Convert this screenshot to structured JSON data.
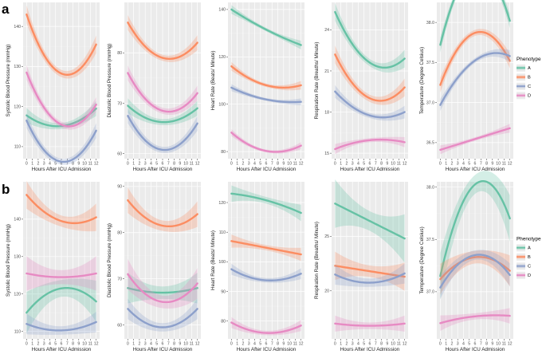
{
  "colors": {
    "A": "#66c2a5",
    "B": "#fc8d62",
    "C": "#8da0cb",
    "D": "#e78ac3"
  },
  "legend": {
    "title": "Phenotype",
    "labels": [
      "A",
      "B",
      "C",
      "D"
    ]
  },
  "chart_data": [
    {
      "label": "a",
      "type": "line",
      "x_ticks": [
        0,
        1,
        2,
        3,
        4,
        5,
        6,
        7,
        8,
        9,
        10,
        11,
        12
      ],
      "xlabel": "Hours After ICU Admission",
      "panels": [
        {
          "ylabel": "Systolic Blood Pressure (mmHg)",
          "ylim": [
            107,
            146
          ],
          "y_ticks": [
            110,
            120,
            130,
            140
          ],
          "series": [
            {
              "name": "A",
              "x": [
                0,
                12
              ],
              "y": [
                117.8,
                119.5
              ],
              "ci": 1.0,
              "curve": [
                0,
                -3.5
              ]
            },
            {
              "name": "B",
              "x": [
                0,
                12
              ],
              "y": [
                143,
                135.5
              ],
              "ci": 1.2,
              "curve": [
                0,
                -11
              ]
            },
            {
              "name": "C",
              "x": [
                0,
                12
              ],
              "y": [
                116.5,
                114
              ],
              "ci": 1.0,
              "curve": [
                0,
                -9
              ]
            },
            {
              "name": "D",
              "x": [
                0,
                12
              ],
              "y": [
                128.5,
                120.5
              ],
              "ci": 1.0,
              "curve": [
                0,
                -9
              ]
            }
          ]
        },
        {
          "ylabel": "Diastolic Blood Pressure (mmHg)",
          "ylim": [
            59,
            90
          ],
          "y_ticks": [
            60,
            70,
            80
          ],
          "series": [
            {
              "name": "A",
              "x": [
                0,
                12
              ],
              "y": [
                69.5,
                69
              ],
              "ci": 0.8,
              "curve": [
                0,
                -3
              ]
            },
            {
              "name": "B",
              "x": [
                0,
                12
              ],
              "y": [
                86,
                82
              ],
              "ci": 0.8,
              "curve": [
                0,
                -5
              ]
            },
            {
              "name": "C",
              "x": [
                0,
                12
              ],
              "y": [
                67.5,
                66
              ],
              "ci": 0.8,
              "curve": [
                0,
                -6
              ]
            },
            {
              "name": "D",
              "x": [
                0,
                12
              ],
              "y": [
                76,
                72
              ],
              "ci": 0.8,
              "curve": [
                0,
                -5.5
              ]
            }
          ]
        },
        {
          "ylabel": "Heart Rate (Beats/ Minute)",
          "ylim": [
            77,
            143
          ],
          "y_ticks": [
            80,
            100,
            120,
            140
          ],
          "series": [
            {
              "name": "A",
              "x": [
                0,
                12
              ],
              "y": [
                140,
                125
              ],
              "ci": 1.0,
              "curve": [
                0,
                -1
              ]
            },
            {
              "name": "B",
              "x": [
                0,
                12
              ],
              "y": [
                116,
                108
              ],
              "ci": 1.0,
              "curve": [
                0,
                -4
              ]
            },
            {
              "name": "C",
              "x": [
                0,
                12
              ],
              "y": [
                107,
                101
              ],
              "ci": 0.8,
              "curve": [
                0,
                -2
              ]
            },
            {
              "name": "D",
              "x": [
                0,
                12
              ],
              "y": [
                88,
                82.5
              ],
              "ci": 0.8,
              "curve": [
                0,
                -5
              ]
            }
          ]
        },
        {
          "ylabel": "Respiration Rate (Breaths/ Minute)",
          "ylim": [
            14.6,
            26
          ],
          "y_ticks": [
            15,
            18,
            21,
            24
          ],
          "series": [
            {
              "name": "A",
              "x": [
                0,
                12
              ],
              "y": [
                25.3,
                21.9
              ],
              "ci": 0.35,
              "curve": [
                0,
                -2
              ]
            },
            {
              "name": "B",
              "x": [
                0,
                12
              ],
              "y": [
                22.2,
                19.8
              ],
              "ci": 0.35,
              "curve": [
                0,
                -2
              ]
            },
            {
              "name": "C",
              "x": [
                0,
                12
              ],
              "y": [
                19.5,
                18
              ],
              "ci": 0.25,
              "curve": [
                0,
                -1
              ]
            },
            {
              "name": "D",
              "x": [
                0,
                12
              ],
              "y": [
                15.3,
                15.8
              ],
              "ci": 0.2,
              "curve": [
                0,
                0.4
              ]
            }
          ]
        },
        {
          "ylabel": "Temperature (Degree Celsius)",
          "ylim": [
            36.3,
            38.25
          ],
          "y_ticks": [
            36.5,
            37.0,
            37.5,
            38.0
          ],
          "series": [
            {
              "name": "A",
              "x": [
                0,
                12
              ],
              "y": [
                37.72,
                38.02
              ],
              "ci": 0.05,
              "curve": [
                0,
                0.8
              ]
            },
            {
              "name": "B",
              "x": [
                0,
                12
              ],
              "y": [
                37.22,
                37.52
              ],
              "ci": 0.05,
              "curve": [
                0,
                0.5
              ]
            },
            {
              "name": "C",
              "x": [
                0,
                12
              ],
              "y": [
                36.97,
                37.58
              ],
              "ci": 0.04,
              "curve": [
                0,
                0.25
              ]
            },
            {
              "name": "D",
              "x": [
                0,
                12
              ],
              "y": [
                36.41,
                36.68
              ],
              "ci": 0.03,
              "curve": [
                0,
                0
              ]
            }
          ]
        }
      ]
    },
    {
      "label": "b",
      "type": "line",
      "x_ticks": [
        0,
        1,
        2,
        3,
        4,
        5,
        6,
        7,
        8,
        9,
        10,
        11,
        12
      ],
      "xlabel": "Hours After ICU Admission",
      "panels": [
        {
          "ylabel": "Systolic Blood Pressure (mmHg)",
          "ylim": [
            108,
            150
          ],
          "y_ticks": [
            110,
            120,
            130,
            140
          ],
          "series": [
            {
              "name": "A",
              "x": [
                0,
                12
              ],
              "y": [
                115,
                118
              ],
              "ci": 3.0,
              "curve": [
                0,
                5
              ]
            },
            {
              "name": "B",
              "x": [
                0,
                12
              ],
              "y": [
                146.5,
                140.5
              ],
              "ci": 2.0,
              "curve": [
                0,
                -4
              ]
            },
            {
              "name": "C",
              "x": [
                0,
                12
              ],
              "y": [
                112,
                112.5
              ],
              "ci": 1.5,
              "curve": [
                0,
                -2
              ]
            },
            {
              "name": "D",
              "x": [
                0,
                12
              ],
              "y": [
                125.5,
                125.5
              ],
              "ci": 2.5,
              "curve": [
                0,
                -1
              ]
            }
          ]
        },
        {
          "ylabel": "Diastolic Blood Pressure (mmHg)",
          "ylim": [
            57,
            91
          ],
          "y_ticks": [
            60,
            70,
            80,
            90
          ],
          "series": [
            {
              "name": "A",
              "x": [
                0,
                12
              ],
              "y": [
                68,
                68
              ],
              "ci": 1.8,
              "curve": [
                0,
                -1
              ]
            },
            {
              "name": "B",
              "x": [
                0,
                12
              ],
              "y": [
                87,
                84
              ],
              "ci": 1.5,
              "curve": [
                0,
                -4
              ]
            },
            {
              "name": "C",
              "x": [
                0,
                12
              ],
              "y": [
                63.5,
                63.5
              ],
              "ci": 1.2,
              "curve": [
                0,
                -4
              ]
            },
            {
              "name": "D",
              "x": [
                0,
                12
              ],
              "y": [
                71,
                69
              ],
              "ci": 1.8,
              "curve": [
                0,
                -5
              ]
            }
          ]
        },
        {
          "ylabel": "Heart Rate (Beats/ Minute)",
          "ylim": [
            74,
            127
          ],
          "y_ticks": [
            80,
            90,
            100,
            110,
            120
          ],
          "series": [
            {
              "name": "A",
              "x": [
                0,
                12
              ],
              "y": [
                123,
                116.5
              ],
              "ci": 1.5,
              "curve": [
                0,
                1
              ]
            },
            {
              "name": "B",
              "x": [
                0,
                12
              ],
              "y": [
                107,
                102.5
              ],
              "ci": 1.2,
              "curve": [
                0,
                0
              ]
            },
            {
              "name": "C",
              "x": [
                0,
                12
              ],
              "y": [
                97.5,
                96
              ],
              "ci": 1.0,
              "curve": [
                0,
                -3
              ]
            },
            {
              "name": "D",
              "x": [
                0,
                12
              ],
              "y": [
                79.5,
                78.5
              ],
              "ci": 1.0,
              "curve": [
                0,
                -3
              ]
            }
          ]
        },
        {
          "ylabel": "Respiration Rate (Breaths/ Minute)",
          "ylim": [
            15.6,
            30
          ],
          "y_ticks": [
            20,
            25
          ],
          "series": [
            {
              "name": "A",
              "x": [
                0,
                12
              ],
              "y": [
                28,
                24.8
              ],
              "ci": 1.2,
              "curve": [
                0,
                0
              ]
            },
            {
              "name": "B",
              "x": [
                0,
                12
              ],
              "y": [
                22.3,
                21.3
              ],
              "ci": 0.7,
              "curve": [
                0,
                0
              ]
            },
            {
              "name": "C",
              "x": [
                0,
                12
              ],
              "y": [
                21.5,
                21.6
              ],
              "ci": 0.5,
              "curve": [
                0,
                -0.8
              ]
            },
            {
              "name": "D",
              "x": [
                0,
                12
              ],
              "y": [
                17,
                17
              ],
              "ci": 0.4,
              "curve": [
                0,
                -0.2
              ]
            }
          ]
        },
        {
          "ylabel": "Temperature (Degree Celsius)",
          "ylim": [
            36.55,
            38.05
          ],
          "y_ticks": [
            37.0,
            37.5,
            38.0
          ],
          "series": [
            {
              "name": "A",
              "x": [
                0,
                12
              ],
              "y": [
                37.15,
                37.7
              ],
              "ci": 0.12,
              "curve": [
                0,
                0.6
              ]
            },
            {
              "name": "B",
              "x": [
                0,
                12
              ],
              "y": [
                37.12,
                37.2
              ],
              "ci": 0.08,
              "curve": [
                0,
                0.17
              ]
            },
            {
              "name": "C",
              "x": [
                0,
                12
              ],
              "y": [
                37.04,
                37.16
              ],
              "ci": 0.06,
              "curve": [
                0,
                0.25
              ]
            },
            {
              "name": "D",
              "x": [
                0,
                12
              ],
              "y": [
                36.7,
                36.77
              ],
              "ci": 0.04,
              "curve": [
                0,
                0.03
              ]
            }
          ]
        }
      ]
    }
  ]
}
